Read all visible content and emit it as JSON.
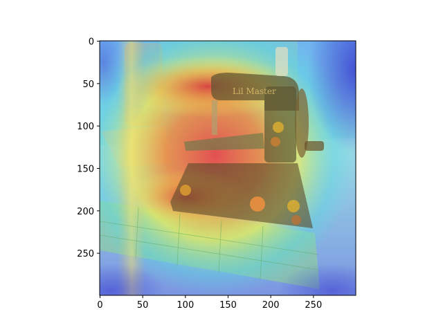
{
  "figure": {
    "background": "#ffffff",
    "axis_color": "#000000"
  },
  "image_panel": {
    "description_icon": "heatmap-overlay-photo-icon",
    "xlim": [
      0,
      300
    ],
    "ylim": [
      300,
      0
    ],
    "xticks": [
      0,
      50,
      100,
      150,
      200,
      250
    ],
    "yticks": [
      0,
      50,
      100,
      150,
      200,
      250
    ],
    "xtick_labels": [
      "0",
      "50",
      "100",
      "150",
      "200",
      "250"
    ],
    "ytick_labels": [
      "0",
      "50",
      "100",
      "150",
      "200",
      "250"
    ],
    "heatmap_colors": {
      "low": "#4a4fd8",
      "mid_low": "#36d7e8",
      "mid": "#f0f05a",
      "high": "#e83a2a"
    }
  }
}
